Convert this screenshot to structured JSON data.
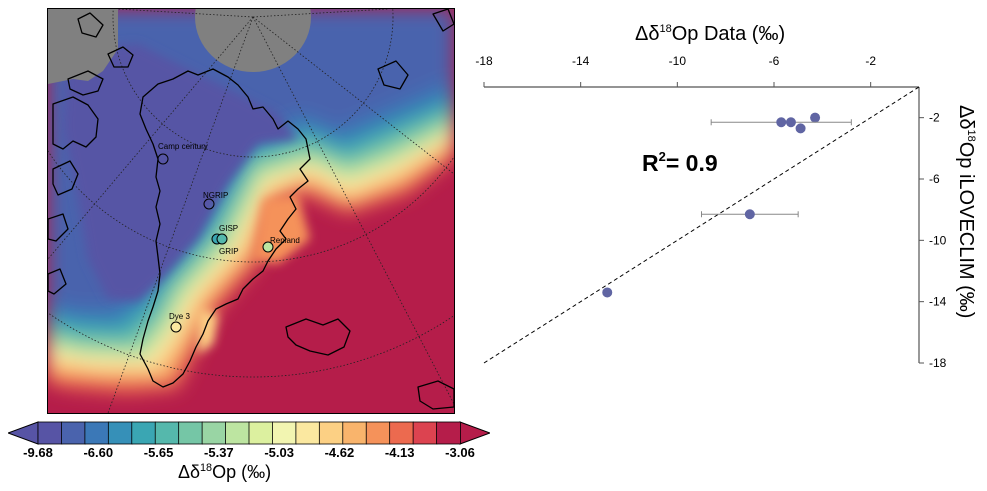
{
  "map": {
    "sites": [
      {
        "name": "Camp century",
        "label": "Camp century"
      },
      {
        "name": "NGRIP",
        "label": "NGRIP"
      },
      {
        "name": "GISP",
        "label": "GISP"
      },
      {
        "name": "GRIP",
        "label": "GRIP"
      },
      {
        "name": "Renland",
        "label": "Renland"
      },
      {
        "name": "Dye 3",
        "label": "Dye 3"
      }
    ],
    "land_color": "#808080",
    "ocean_high_color": "#b51d4a",
    "low_color": "#4e4aa0"
  },
  "colorbar": {
    "label_prefix": "Δδ",
    "label_sup": "18",
    "label_suffix": "Op (‰)",
    "tick_labels": [
      "-9.68",
      "-6.60",
      "-5.65",
      "-5.37",
      "-5.03",
      "-4.62",
      "-4.13",
      "-3.06"
    ],
    "colors": [
      "#5754a5",
      "#4a63ad",
      "#3b78b7",
      "#3690b8",
      "#3aa6b3",
      "#55b8ac",
      "#75c6a6",
      "#99d5a4",
      "#bde5a1",
      "#dcf09f",
      "#f2f5b1",
      "#fbe8a0",
      "#fcd084",
      "#f9b46c",
      "#f5925a",
      "#ec6a4f",
      "#dc4350",
      "#b51d4a"
    ]
  },
  "chart_data": {
    "type": "scatter",
    "title": "",
    "xlabel_prefix": "Δδ",
    "xlabel_sup": "18",
    "xlabel_suffix": "Op Data (‰)",
    "ylabel_prefix": "Δδ",
    "ylabel_sup": "18",
    "ylabel_suffix": "Op iLOVECLIM (‰)",
    "xlim": [
      -18,
      0
    ],
    "ylim": [
      -18,
      0
    ],
    "xticks": [
      -18,
      -14,
      -10,
      -6,
      -2
    ],
    "yticks": [
      -2,
      -6,
      -10,
      -14,
      -18
    ],
    "x_axis_position": "top",
    "y_axis_position": "right",
    "r2_prefix": "R",
    "r2_sup": "2",
    "r2_suffix": "= 0.9",
    "point_color": "#6065a3",
    "points": [
      {
        "x": -4.3,
        "y": -2.0,
        "xerr": 0
      },
      {
        "x": -5.7,
        "y": -2.3,
        "xerr": 2.9
      },
      {
        "x": -5.3,
        "y": -2.3,
        "xerr": 0
      },
      {
        "x": -4.9,
        "y": -2.7,
        "xerr": 0
      },
      {
        "x": -7.0,
        "y": -8.3,
        "xerr": 2.0
      },
      {
        "x": -12.9,
        "y": -13.4,
        "xerr": 0
      }
    ],
    "reference_line": "1:1 dashed"
  }
}
